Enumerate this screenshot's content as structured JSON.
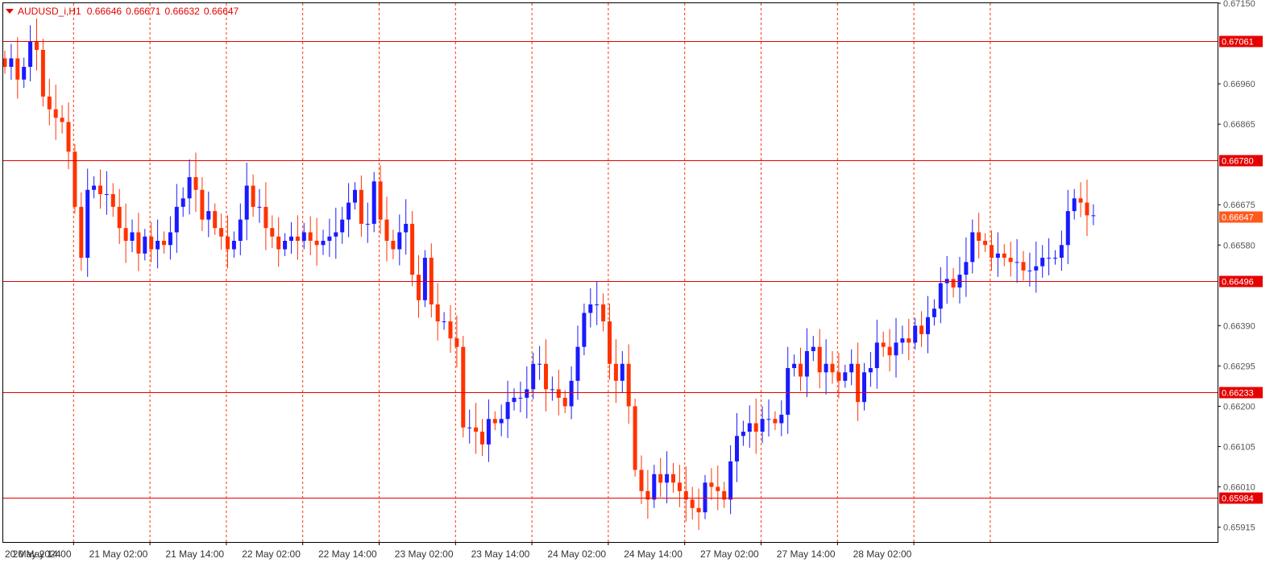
{
  "header": {
    "symbol": "AUDUSD_i,H1",
    "open": "0.66646",
    "high": "0.66671",
    "low": "0.66632",
    "close": "0.66647"
  },
  "colors": {
    "bull": "#1a1aff",
    "bear": "#ff3300",
    "grid": "#ff3300",
    "level_line": "#e60000",
    "level_label_bg": "#e60000",
    "current_price_bg": "#ff5a1e"
  },
  "chart_data": {
    "type": "candlestick",
    "timeframe": "H1",
    "ylim": [
      0.6588,
      0.6715
    ],
    "price_ticks": [
      "0.67150",
      "0.66960",
      "0.66865",
      "0.66675",
      "0.66580",
      "0.66390",
      "0.66295",
      "0.66200",
      "0.66105",
      "0.66010",
      "0.65915"
    ],
    "time_labels": [
      "20 May 2024",
      "20 May 14:00",
      "21 May 02:00",
      "21 May 14:00",
      "22 May 02:00",
      "22 May 14:00",
      "23 May 02:00",
      "23 May 14:00",
      "24 May 02:00",
      "24 May 14:00",
      "27 May 02:00",
      "27 May 14:00",
      "28 May 02:00"
    ],
    "horizontal_levels": [
      "0.67061",
      "0.66780",
      "0.66496",
      "0.66233",
      "0.65984"
    ],
    "current_price": "0.66647",
    "closes": [
      0.67,
      0.6702,
      0.6697,
      0.67,
      0.6706,
      0.6704,
      0.6693,
      0.669,
      0.6688,
      0.6687,
      0.668,
      0.6667,
      0.6655,
      0.6671,
      0.6672,
      0.667,
      0.667,
      0.6667,
      0.6662,
      0.6659,
      0.6661,
      0.6656,
      0.666,
      0.6657,
      0.6659,
      0.6658,
      0.6661,
      0.6667,
      0.6669,
      0.6674,
      0.6671,
      0.6664,
      0.6666,
      0.6662,
      0.666,
      0.6657,
      0.6659,
      0.6664,
      0.6672,
      0.6667,
      0.6667,
      0.6662,
      0.666,
      0.6657,
      0.6659,
      0.666,
      0.6659,
      0.6661,
      0.6659,
      0.6658,
      0.6659,
      0.666,
      0.6661,
      0.6664,
      0.6668,
      0.6671,
      0.6663,
      0.6663,
      0.6673,
      0.6664,
      0.6659,
      0.6657,
      0.6661,
      0.6663,
      0.6651,
      0.6645,
      0.6655,
      0.6644,
      0.664,
      0.664,
      0.6636,
      0.6634,
      0.6615,
      0.6615,
      0.6614,
      0.6611,
      0.6617,
      0.6616,
      0.6617,
      0.6621,
      0.6622,
      0.6622,
      0.6624,
      0.663,
      0.663,
      0.6624,
      0.6624,
      0.6622,
      0.662,
      0.6626,
      0.6634,
      0.6642,
      0.6644,
      0.6644,
      0.664,
      0.663,
      0.6626,
      0.663,
      0.662,
      0.6605,
      0.66,
      0.6598,
      0.6604,
      0.6602,
      0.6604,
      0.6602,
      0.66,
      0.6598,
      0.6596,
      0.6595,
      0.6602,
      0.6601,
      0.66,
      0.6598,
      0.6607,
      0.6613,
      0.6614,
      0.6616,
      0.6614,
      0.6617,
      0.6617,
      0.6616,
      0.6618,
      0.6629,
      0.663,
      0.6627,
      0.6633,
      0.6634,
      0.6628,
      0.663,
      0.6628,
      0.6626,
      0.6628,
      0.663,
      0.6621,
      0.6628,
      0.6629,
      0.6635,
      0.6634,
      0.6632,
      0.6635,
      0.6636,
      0.6635,
      0.6639,
      0.6637,
      0.6641,
      0.6643,
      0.6649,
      0.665,
      0.6648,
      0.6651,
      0.6654,
      0.6661,
      0.6659,
      0.6658,
      0.6655,
      0.6656,
      0.6655,
      0.6654,
      0.6654,
      0.6652,
      0.6652,
      0.6653,
      0.6655,
      0.6655,
      0.6655,
      0.6658,
      0.6666,
      0.6669,
      0.6668,
      0.6665,
      0.6665
    ]
  }
}
